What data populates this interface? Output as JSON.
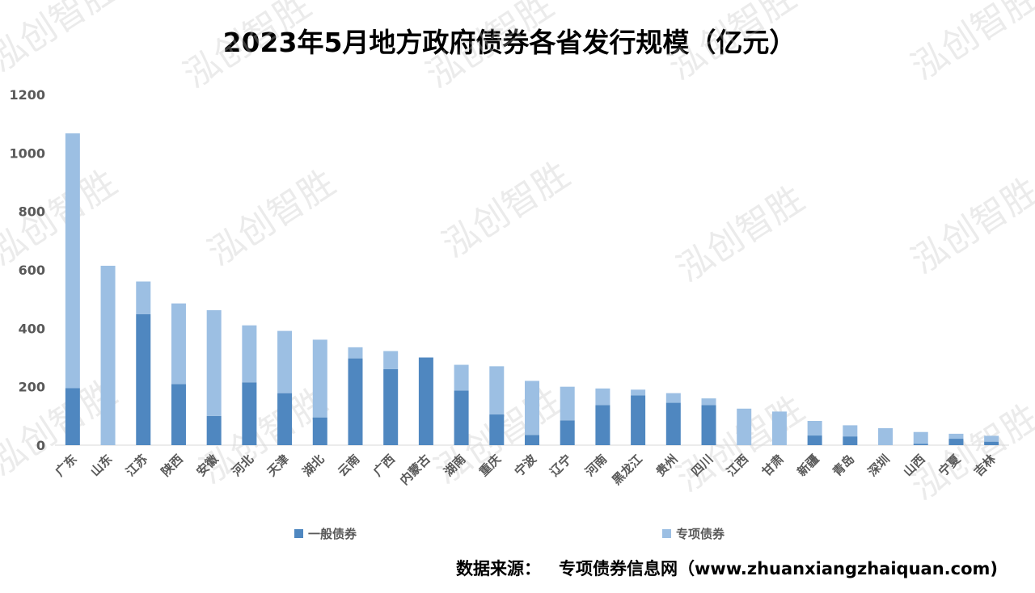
{
  "title": "2023年5月地方政府债券各省发行规模（亿元）",
  "source": {
    "label": "数据来源：",
    "text": "专项债券信息网（www.zhuanxiangzhaiquan.com)"
  },
  "watermark": "泓创智胜",
  "colors": {
    "general": "#4F87C0",
    "special": "#9CBFE3",
    "axis": "#595959",
    "baseline": "#D9D9D9"
  },
  "chart_data": {
    "type": "bar",
    "stacked": true,
    "ylim": [
      0,
      1200
    ],
    "yticks": [
      0,
      200,
      400,
      600,
      800,
      1000,
      1200
    ],
    "legend_position": "bottom",
    "categories": [
      "广东",
      "山东",
      "江苏",
      "陕西",
      "安徽",
      "河北",
      "天津",
      "湖北",
      "云南",
      "广西",
      "内蒙古",
      "湖南",
      "重庆",
      "宁波",
      "辽宁",
      "河南",
      "黑龙江",
      "贵州",
      "四川",
      "江西",
      "甘肃",
      "新疆",
      "青岛",
      "深圳",
      "山西",
      "宁夏",
      "吉林"
    ],
    "series": [
      {
        "name": "一般债券",
        "values": [
          195,
          0,
          448,
          209,
          100,
          215,
          178,
          95,
          297,
          260,
          300,
          187,
          105,
          35,
          85,
          137,
          170,
          145,
          137,
          0,
          0,
          33,
          30,
          0,
          5,
          22,
          12
        ]
      },
      {
        "name": "专项债券",
        "values": [
          872,
          614,
          112,
          276,
          362,
          195,
          213,
          266,
          38,
          62,
          0,
          88,
          165,
          185,
          115,
          57,
          20,
          33,
          23,
          125,
          115,
          50,
          38,
          58,
          40,
          17,
          20
        ]
      }
    ]
  }
}
